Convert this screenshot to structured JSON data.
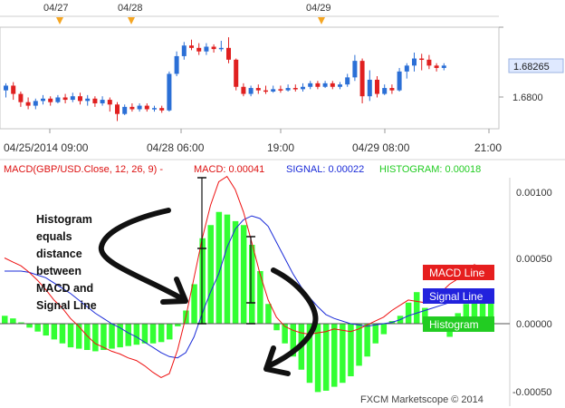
{
  "header": {
    "indicator_title": "MACD(GBP/USD.Close, 12, 26, 9) -",
    "macd_label": "MACD: 0.00041",
    "signal_label": "SIGNAL: 0.00022",
    "histogram_label": "HISTOGRAM: 0.00018"
  },
  "top_dates": [
    "04/27",
    "04/28",
    "04/29"
  ],
  "time_axis": [
    "04/25/2014 09:00",
    "04/28 06:00",
    "19:00",
    "04/29 08:00",
    "21:00"
  ],
  "price_axis": {
    "labels": [
      "1.6800"
    ],
    "current_price": "1.68265"
  },
  "macd_axis": {
    "labels": [
      "0.00100",
      "0.00050",
      "0.00000",
      "-0.00050"
    ]
  },
  "annotation": {
    "lines": [
      "Histogram",
      "equals",
      "distance",
      "between",
      "MACD and",
      "Signal Line"
    ]
  },
  "tags": {
    "macd": "MACD Line",
    "signal": "Signal Line",
    "histogram": "Histogram"
  },
  "watermark": "FXCM Marketscope © 2014",
  "colors": {
    "up_candle": "#2b6fd6",
    "down_candle": "#e02020",
    "macd_line": "#ee1111",
    "signal_line": "#1a2bd8",
    "histogram": "#33ff33",
    "current_price_bg": "#dfe9ff"
  },
  "chart_data": [
    {
      "type": "candlestick",
      "instrument": "GBP/USD",
      "ylim": [
        1.6775,
        1.6858
      ],
      "candles": [
        [
          1.6806,
          1.681,
          1.6812,
          1.68
        ],
        [
          1.681,
          1.6803,
          1.6813,
          1.6798
        ],
        [
          1.6803,
          1.6796,
          1.6805,
          1.6792
        ],
        [
          1.6796,
          1.6793,
          1.68,
          1.679
        ],
        [
          1.6793,
          1.6797,
          1.6799,
          1.679
        ],
        [
          1.6797,
          1.6799,
          1.6802,
          1.6794
        ],
        [
          1.6799,
          1.6796,
          1.6801,
          1.6793
        ],
        [
          1.6796,
          1.68,
          1.6802,
          1.6795
        ],
        [
          1.68,
          1.6798,
          1.6803,
          1.6795
        ],
        [
          1.6798,
          1.6801,
          1.6804,
          1.6796
        ],
        [
          1.6801,
          1.6797,
          1.6804,
          1.6794
        ],
        [
          1.6797,
          1.6799,
          1.6802,
          1.6793
        ],
        [
          1.6799,
          1.6795,
          1.6801,
          1.6792
        ],
        [
          1.6795,
          1.6798,
          1.6801,
          1.6793
        ],
        [
          1.6798,
          1.6794,
          1.68,
          1.6788
        ],
        [
          1.6794,
          1.6786,
          1.6796,
          1.678
        ],
        [
          1.6786,
          1.6792,
          1.6794,
          1.6785
        ],
        [
          1.6792,
          1.679,
          1.6795,
          1.6788
        ],
        [
          1.679,
          1.6793,
          1.6795,
          1.6788
        ],
        [
          1.6793,
          1.679,
          1.6795,
          1.6788
        ],
        [
          1.679,
          1.6791,
          1.6793,
          1.6788
        ],
        [
          1.6791,
          1.6789,
          1.6793,
          1.6787
        ],
        [
          1.6789,
          1.682,
          1.6822,
          1.6788
        ],
        [
          1.682,
          1.6835,
          1.6839,
          1.6818
        ],
        [
          1.6835,
          1.6844,
          1.6847,
          1.6832
        ],
        [
          1.6844,
          1.6842,
          1.6849,
          1.684
        ],
        [
          1.6842,
          1.6839,
          1.6846,
          1.6836
        ],
        [
          1.6839,
          1.6843,
          1.6846,
          1.6836
        ],
        [
          1.6843,
          1.6841,
          1.6845,
          1.6838
        ],
        [
          1.6841,
          1.6842,
          1.6848,
          1.6839
        ],
        [
          1.6842,
          1.6832,
          1.6851,
          1.6829
        ],
        [
          1.6832,
          1.6809,
          1.6833,
          1.6806
        ],
        [
          1.6809,
          1.6803,
          1.6812,
          1.6801
        ],
        [
          1.6803,
          1.6808,
          1.681,
          1.6801
        ],
        [
          1.6808,
          1.6806,
          1.6811,
          1.6803
        ],
        [
          1.6806,
          1.6805,
          1.681,
          1.6803
        ],
        [
          1.6805,
          1.6807,
          1.681,
          1.6804
        ],
        [
          1.6807,
          1.6806,
          1.681,
          1.6804
        ],
        [
          1.6806,
          1.6808,
          1.6811,
          1.6805
        ],
        [
          1.6808,
          1.6807,
          1.6811,
          1.6805
        ],
        [
          1.6807,
          1.6809,
          1.6812,
          1.6805
        ],
        [
          1.6809,
          1.6812,
          1.6814,
          1.6807
        ],
        [
          1.6812,
          1.6809,
          1.6814,
          1.6807
        ],
        [
          1.6809,
          1.6812,
          1.6814,
          1.6808
        ],
        [
          1.6812,
          1.6809,
          1.6814,
          1.6807
        ],
        [
          1.6809,
          1.6811,
          1.6813,
          1.6807
        ],
        [
          1.6811,
          1.6817,
          1.682,
          1.6809
        ],
        [
          1.6817,
          1.6831,
          1.6836,
          1.6814
        ],
        [
          1.6831,
          1.6801,
          1.6833,
          1.6795
        ],
        [
          1.6801,
          1.6815,
          1.6823,
          1.6797
        ],
        [
          1.6815,
          1.6803,
          1.6818,
          1.68
        ],
        [
          1.6803,
          1.6808,
          1.6811,
          1.6802
        ],
        [
          1.6808,
          1.6806,
          1.6811,
          1.6803
        ],
        [
          1.6806,
          1.6822,
          1.6825,
          1.6805
        ],
        [
          1.6822,
          1.6827,
          1.6829,
          1.6816
        ],
        [
          1.6827,
          1.6833,
          1.6838,
          1.6822
        ],
        [
          1.6833,
          1.6832,
          1.6837,
          1.6823
        ],
        [
          1.6832,
          1.6827,
          1.6836,
          1.6824
        ],
        [
          1.6827,
          1.6825,
          1.6829,
          1.6822
        ],
        [
          1.6825,
          1.6827,
          1.6829,
          1.6823
        ]
      ]
    },
    {
      "type": "line",
      "title": "MACD(GBP/USD.Close, 12, 26, 9)",
      "ylim": [
        -0.0005,
        0.001
      ],
      "series": [
        {
          "name": "MACD Line",
          "values": [
            0.0005,
            0.00047,
            0.00044,
            0.00039,
            0.00033,
            0.00026,
            0.00018,
            0.00012,
            4e-05,
            -2e-05,
            -9e-05,
            -0.00015,
            -0.00018,
            -0.00021,
            -0.00023,
            -0.00026,
            -0.00028,
            -0.00032,
            -0.00037,
            -0.00041,
            -0.00038,
            -0.0002,
            5e-05,
            0.00035,
            0.00065,
            0.0009,
            0.00108,
            0.00112,
            0.00102,
            0.00085,
            0.00062,
            0.00038,
            0.00018,
            5e-05,
            -2e-05,
            -5e-05,
            -7e-05,
            -8e-05,
            -7e-05,
            -6e-05,
            -4e-05,
            -5e-05,
            -6e-05,
            -4e-05,
            -1e-05,
            2e-05,
            5e-05,
            0.0001,
            0.00014,
            0.00018,
            0.00017,
            0.00016,
            0.00019,
            0.00024,
            0.0003,
            0.00034,
            0.00037,
            0.00045,
            0.00043,
            0.00041
          ]
        },
        {
          "name": "Signal Line",
          "values": [
            0.0004,
            0.0004,
            0.0004,
            0.00039,
            0.00037,
            0.00035,
            0.00031,
            0.00027,
            0.00023,
            0.00018,
            0.00013,
            8e-05,
            4e-05,
            0.0,
            -3e-05,
            -7e-05,
            -0.0001,
            -0.00014,
            -0.00018,
            -0.00022,
            -0.00025,
            -0.00026,
            -0.00022,
            -0.0001,
            8e-05,
            0.00024,
            0.00038,
            0.00058,
            0.00072,
            0.00079,
            0.00082,
            0.0008,
            0.00074,
            0.00062,
            0.0005,
            0.00038,
            0.00028,
            0.0002,
            0.00013,
            7e-05,
            4e-05,
            2e-05,
            0.0,
            -1e-05,
            -2e-05,
            -1e-05,
            0.0,
            1e-05,
            3e-05,
            6e-05,
            8e-05,
            0.0001,
            0.00012,
            0.00014,
            0.00016,
            0.00019,
            0.00021,
            0.00022,
            0.00022,
            0.00022
          ]
        },
        {
          "name": "Histogram",
          "bar": true,
          "values": [
            6e-05,
            4e-05,
            1e-05,
            -3e-05,
            -6e-05,
            -9e-05,
            -0.00012,
            -0.00015,
            -0.00018,
            -0.00019,
            -0.0002,
            -0.00021,
            -0.0002,
            -0.00019,
            -0.00018,
            -0.00017,
            -0.00016,
            -0.00015,
            -0.00015,
            -0.00014,
            -0.00012,
            -2e-05,
            0.0001,
            0.0003,
            0.00065,
            0.00075,
            0.00085,
            0.00083,
            0.00078,
            0.00075,
            0.0006,
            0.0004,
            0.00015,
            -5e-05,
            -0.00015,
            -0.00025,
            -0.00035,
            -0.00045,
            -0.00052,
            -0.00051,
            -0.00048,
            -0.00045,
            -0.0004,
            -0.00032,
            -0.00025,
            -0.00015,
            -8e-05,
            2e-05,
            6e-05,
            0.00016,
            0.00024,
            0.00012,
            5e-05,
            -5e-05,
            -0.0001,
            8e-05,
            0.00015,
            0.00018,
            0.0002,
            0.00018
          ]
        }
      ]
    }
  ]
}
